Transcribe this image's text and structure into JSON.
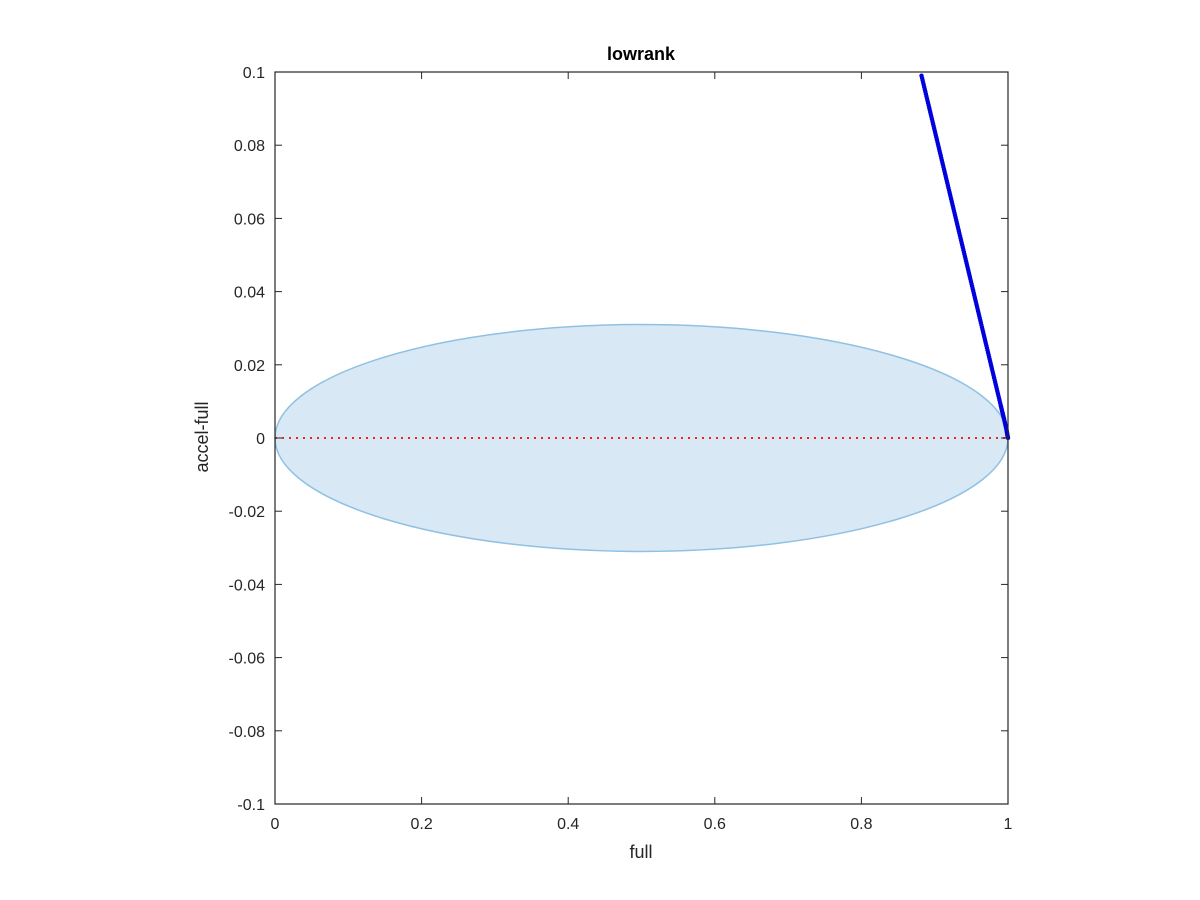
{
  "chart_data": {
    "type": "scatter",
    "title": "lowrank",
    "xlabel": "full",
    "ylabel": "accel-full",
    "xlim": [
      0,
      1
    ],
    "ylim": [
      -0.1,
      0.1
    ],
    "xticks": [
      0,
      0.2,
      0.4,
      0.6,
      0.8,
      1
    ],
    "xtick_labels": [
      "0",
      "0.2",
      "0.4",
      "0.6",
      "0.8",
      "1"
    ],
    "yticks": [
      -0.1,
      -0.08,
      -0.06,
      -0.04,
      -0.02,
      0,
      0.02,
      0.04,
      0.06,
      0.08,
      0.1
    ],
    "ytick_labels": [
      "-0.1",
      "-0.08",
      "-0.06",
      "-0.04",
      "-0.02",
      "0",
      "0.02",
      "0.04",
      "0.06",
      "0.08",
      "0.1"
    ],
    "grid": false,
    "ellipse": {
      "center_x": 0.5,
      "center_y": 0,
      "radius_x": 0.5,
      "radius_y": 0.031,
      "fill_color": "#d8e8f5",
      "stroke_color": "#90c1e3"
    },
    "reference_line": {
      "y": 0,
      "color": "#ff0000",
      "style": "dotted"
    },
    "series": [
      {
        "color": "#0000dd",
        "x": [
          0.882,
          0.885,
          0.888,
          0.891,
          0.894,
          0.897,
          0.9,
          0.903,
          0.906,
          0.909,
          0.912,
          0.915,
          0.918,
          0.921,
          0.924,
          0.927,
          0.93,
          0.933,
          0.936,
          0.939,
          0.942,
          0.945,
          0.948,
          0.951,
          0.954,
          0.957,
          0.96,
          0.963,
          0.966,
          0.969,
          0.972,
          0.975,
          0.978,
          0.981,
          0.984,
          0.987,
          0.99,
          0.992,
          0.994,
          0.996,
          0.998,
          0.999,
          1.0
        ],
        "y": [
          0.099,
          0.0965,
          0.094,
          0.0915,
          0.089,
          0.0865,
          0.084,
          0.0815,
          0.079,
          0.0765,
          0.074,
          0.0715,
          0.069,
          0.0665,
          0.064,
          0.0615,
          0.059,
          0.0565,
          0.054,
          0.0515,
          0.049,
          0.0465,
          0.044,
          0.0415,
          0.039,
          0.0365,
          0.034,
          0.0315,
          0.029,
          0.0265,
          0.024,
          0.0215,
          0.019,
          0.0165,
          0.014,
          0.0115,
          0.009,
          0.0073,
          0.0057,
          0.004,
          0.0022,
          0.001,
          0.0
        ]
      }
    ]
  }
}
